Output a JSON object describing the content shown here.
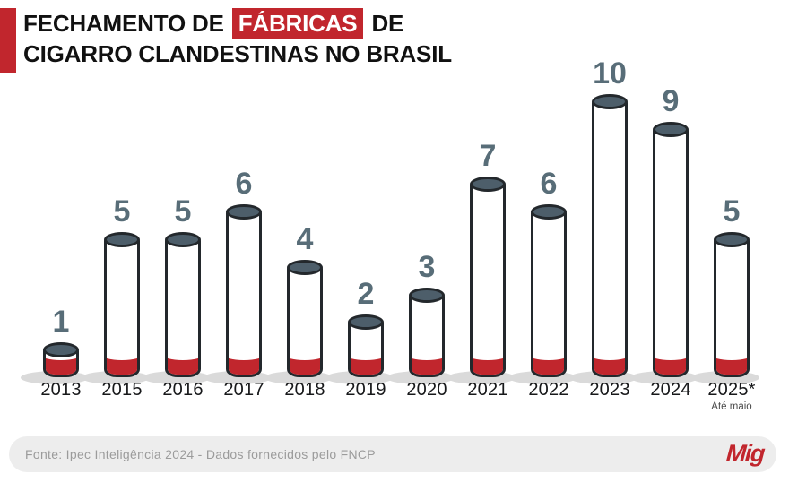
{
  "header": {
    "title_part1": "FECHAMENTO DE",
    "title_highlight": "FÁBRICAS",
    "title_part2": "DE",
    "title_line2": "CIGARRO CLANDESTINAS NO BRASIL"
  },
  "chart_data": {
    "type": "bar",
    "title": "Fechamento de fábricas de cigarro clandestinas no Brasil",
    "categories": [
      "2013",
      "2015",
      "2016",
      "2017",
      "2018",
      "2019",
      "2020",
      "2021",
      "2022",
      "2023",
      "2024",
      "2025*"
    ],
    "values": [
      1,
      5,
      5,
      6,
      4,
      2,
      3,
      7,
      6,
      10,
      9,
      5
    ],
    "ylim": [
      0,
      10
    ],
    "grid": false,
    "legend": "none",
    "bar_style": "cigarette",
    "value_labels_shown": true,
    "footnote": {
      "category": "2025*",
      "text": "Até maio"
    }
  },
  "footer": {
    "source_text": "Fonte: Ipec Inteligência 2024 - Dados fornecidos pelo FNCP",
    "logo_text": "Mig"
  },
  "colors": {
    "accent_red": "#c1262d",
    "cigarette_tip": "#4d5e6a",
    "outline": "#23282c",
    "value_label": "#586d78",
    "shadow": "#dadada",
    "footer_bg": "#ededed",
    "footer_text": "#9b9b9b",
    "title_text": "#111111",
    "note_text": "#4c4c4c"
  }
}
